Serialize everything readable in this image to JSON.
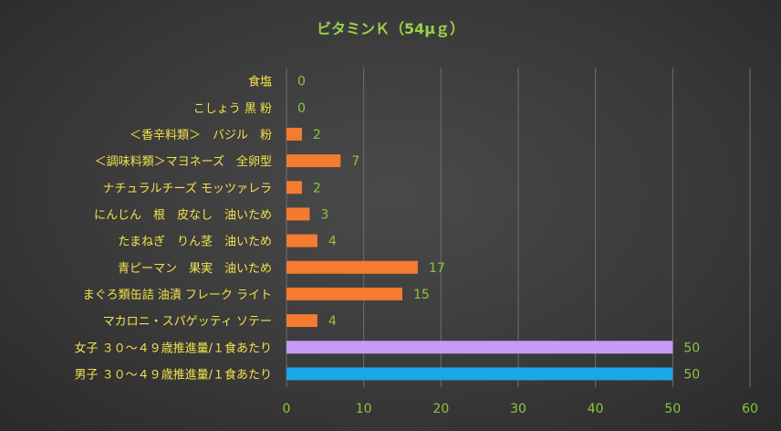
{
  "chart_data": {
    "type": "bar",
    "orientation": "horizontal",
    "title": "ビタミンＫ（54μｇ）",
    "categories": [
      "食塩",
      "こしょう 黒 粉",
      "＜香辛料類＞　バジル　粉",
      "＜調味料類＞マヨネーズ　全卵型",
      "ナチュラルチーズ モッツァレラ",
      "にんじん　根　皮なし　油いため",
      "たまねぎ　りん茎　油いため",
      "青ピーマン　果実　油いため",
      "まぐろ類缶詰 油漬 フレーク ライト",
      "マカロニ・スパゲッティ ソテー",
      "女子 ３０～４９歳推進量/１食あたり",
      "男子 ３０～４９歳推進量/１食あたり"
    ],
    "values": [
      0,
      0,
      2,
      7,
      2,
      3,
      4,
      17,
      15,
      4,
      50,
      50
    ],
    "bar_colors": [
      "#f47b30",
      "#f47b30",
      "#f47b30",
      "#f47b30",
      "#f47b30",
      "#f47b30",
      "#f47b30",
      "#f47b30",
      "#f47b30",
      "#f47b30",
      "#c49bf5",
      "#1aa6e8"
    ],
    "xlim": [
      0,
      60
    ],
    "xticks": [
      0,
      10,
      20,
      30,
      40,
      50,
      60
    ],
    "grid": true,
    "legend": "none"
  },
  "colors": {
    "title": "#9ad24a",
    "category_label": "#f2e24a",
    "data_label": "#8cc63f",
    "tick_label": "#8cc63f",
    "grid": "#6e6e6e"
  }
}
